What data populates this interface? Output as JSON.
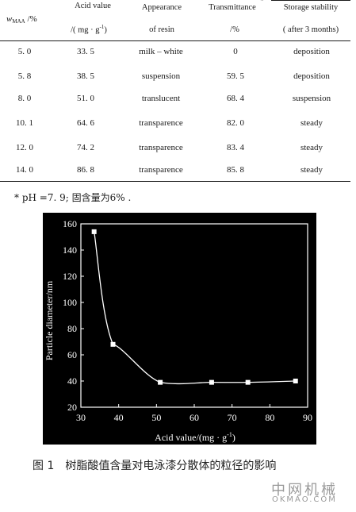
{
  "table": {
    "headers": {
      "wmaa_var": "w",
      "wmaa_sub": "MAA",
      "wmaa_unit": " /%",
      "acid_line1": "Acid value",
      "acid_line2": "/( mg · g",
      "acid_sup": "-1",
      "acid_close": ")",
      "appearance_line1": "Appearance",
      "appearance_line2": "of resin",
      "transmittance_line1": "Transmittance",
      "transmittance_mark": "*",
      "transmittance_line2": "/%",
      "storage_line1": "Storage stability",
      "storage_line2": "( after 3 months)"
    },
    "rows": [
      {
        "wmaa": "5. 0",
        "acid": "33. 5",
        "appearance": "milk – white",
        "transmittance": "0",
        "storage": "deposition"
      },
      {
        "wmaa": "5. 8",
        "acid": "38. 5",
        "appearance": "suspension",
        "transmittance": "59. 5",
        "storage": "deposition"
      },
      {
        "wmaa": "8. 0",
        "acid": "51. 0",
        "appearance": "translucent",
        "transmittance": "68. 4",
        "storage": "suspension"
      },
      {
        "wmaa": "10. 1",
        "acid": "64. 6",
        "appearance": "transparence",
        "transmittance": "82. 0",
        "storage": "steady"
      },
      {
        "wmaa": "12. 0",
        "acid": "74. 2",
        "appearance": "transparence",
        "transmittance": "83. 4",
        "storage": "steady"
      },
      {
        "wmaa": "14. 0",
        "acid": "86. 8",
        "appearance": "transparence",
        "transmittance": "85. 8",
        "storage": "steady"
      }
    ],
    "footnote": "*  pH =7. 9; 固含量为6% ."
  },
  "figure": {
    "caption_number": "图 1",
    "caption_text": "树脂酸值含量对电泳漆分散体的粒径的影响"
  },
  "watermark": {
    "line1": "中网机械",
    "line2": "OKMAO.COM"
  },
  "chart_data": {
    "type": "line",
    "xlabel": "Acid value/(mg · g",
    "xlabel_sup": "-1",
    "xlabel_close": ")",
    "ylabel": "Particle diameter/nm",
    "xlim": [
      30,
      90
    ],
    "ylim": [
      20,
      160
    ],
    "xticks": [
      30,
      40,
      50,
      60,
      70,
      80,
      90
    ],
    "yticks": [
      20,
      40,
      60,
      80,
      100,
      120,
      140,
      160
    ],
    "x": [
      33.5,
      38.5,
      51.0,
      64.6,
      74.2,
      86.8
    ],
    "y": [
      154,
      68,
      39,
      39,
      39,
      40
    ],
    "background": "#000000",
    "foreground": "#ffffff",
    "marker": "square",
    "smooth": true
  }
}
